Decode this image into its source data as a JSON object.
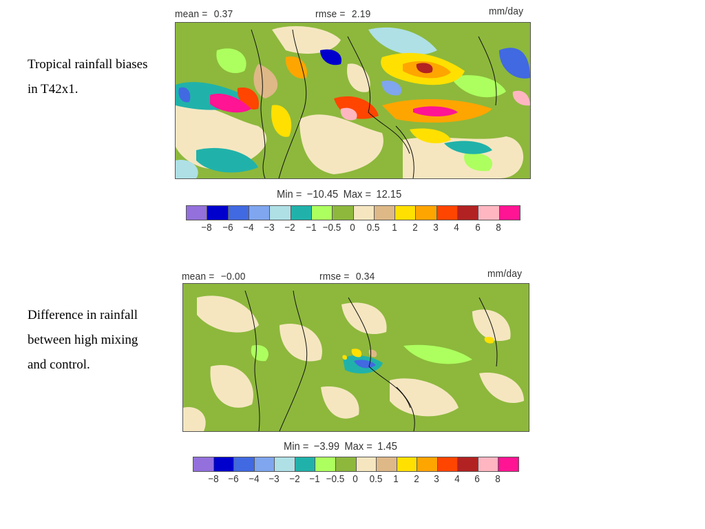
{
  "captions": {
    "top": "Tropical rainfall biases in T42x1.",
    "bottom": "Difference in rainfall between high mixing and control."
  },
  "panels": [
    {
      "mean_label": "mean =",
      "mean_value": "0.37",
      "rmse_label": "rmse =",
      "rmse_value": "2.19",
      "units": "mm/day",
      "min_label": "Min =",
      "min_value": "−10.45",
      "max_label": "Max =",
      "max_value": "12.15"
    },
    {
      "mean_label": "mean =",
      "mean_value": "−0.00",
      "rmse_label": "rmse =",
      "rmse_value": "0.34",
      "units": "mm/day",
      "min_label": "Min =",
      "min_value": "−3.99",
      "max_label": "Max =",
      "max_value": "1.45"
    }
  ],
  "colorbar": {
    "colors": [
      "#9370DB",
      "#0000CD",
      "#4169E1",
      "#7FA6EE",
      "#AEE0E6",
      "#20B2AA",
      "#ADFF5F",
      "#8DB83C",
      "#F5E6C0",
      "#DEB887",
      "#FFE000",
      "#FFA500",
      "#FF4500",
      "#B22222",
      "#FFB6C1",
      "#FF1493"
    ],
    "ticks": [
      "−8",
      "−6",
      "−4",
      "−3",
      "−2",
      "−1",
      "−0.5",
      "0",
      "0.5",
      "1",
      "2",
      "3",
      "4",
      "6",
      "8"
    ]
  }
}
